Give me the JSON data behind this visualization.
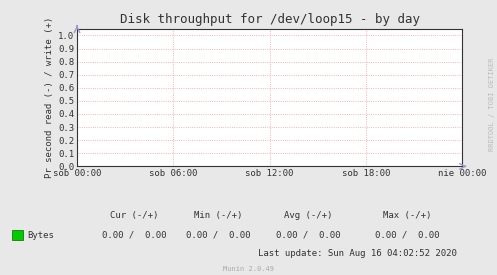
{
  "title": "Disk throughput for /dev/loop15 - by day",
  "ylabel": "Pr second read (-) / write (+)",
  "background_color": "#e8e8e8",
  "plot_bg_color": "#ffffff",
  "grid_color": "#ff9999",
  "border_color": "#aaaaaa",
  "yticks": [
    0.0,
    0.1,
    0.2,
    0.3,
    0.4,
    0.5,
    0.6,
    0.7,
    0.8,
    0.9,
    1.0
  ],
  "ylim": [
    0.0,
    1.05
  ],
  "xtick_labels": [
    "sob 00:00",
    "sob 06:00",
    "sob 12:00",
    "sob 18:00",
    "nie 00:00"
  ],
  "xtick_positions": [
    0.0,
    0.25,
    0.5,
    0.75,
    1.0
  ],
  "legend_label": "Bytes",
  "legend_color": "#00cc00",
  "last_update": "Last update: Sun Aug 16 04:02:52 2020",
  "munin_label": "Munin 2.0.49",
  "watermark": "RRDTOOL / TOBI OETIKER",
  "title_fontsize": 9,
  "axis_label_fontsize": 6.5,
  "tick_fontsize": 6.5,
  "stats_fontsize": 6.5,
  "watermark_fontsize": 5,
  "arrow_color": "#9999cc"
}
